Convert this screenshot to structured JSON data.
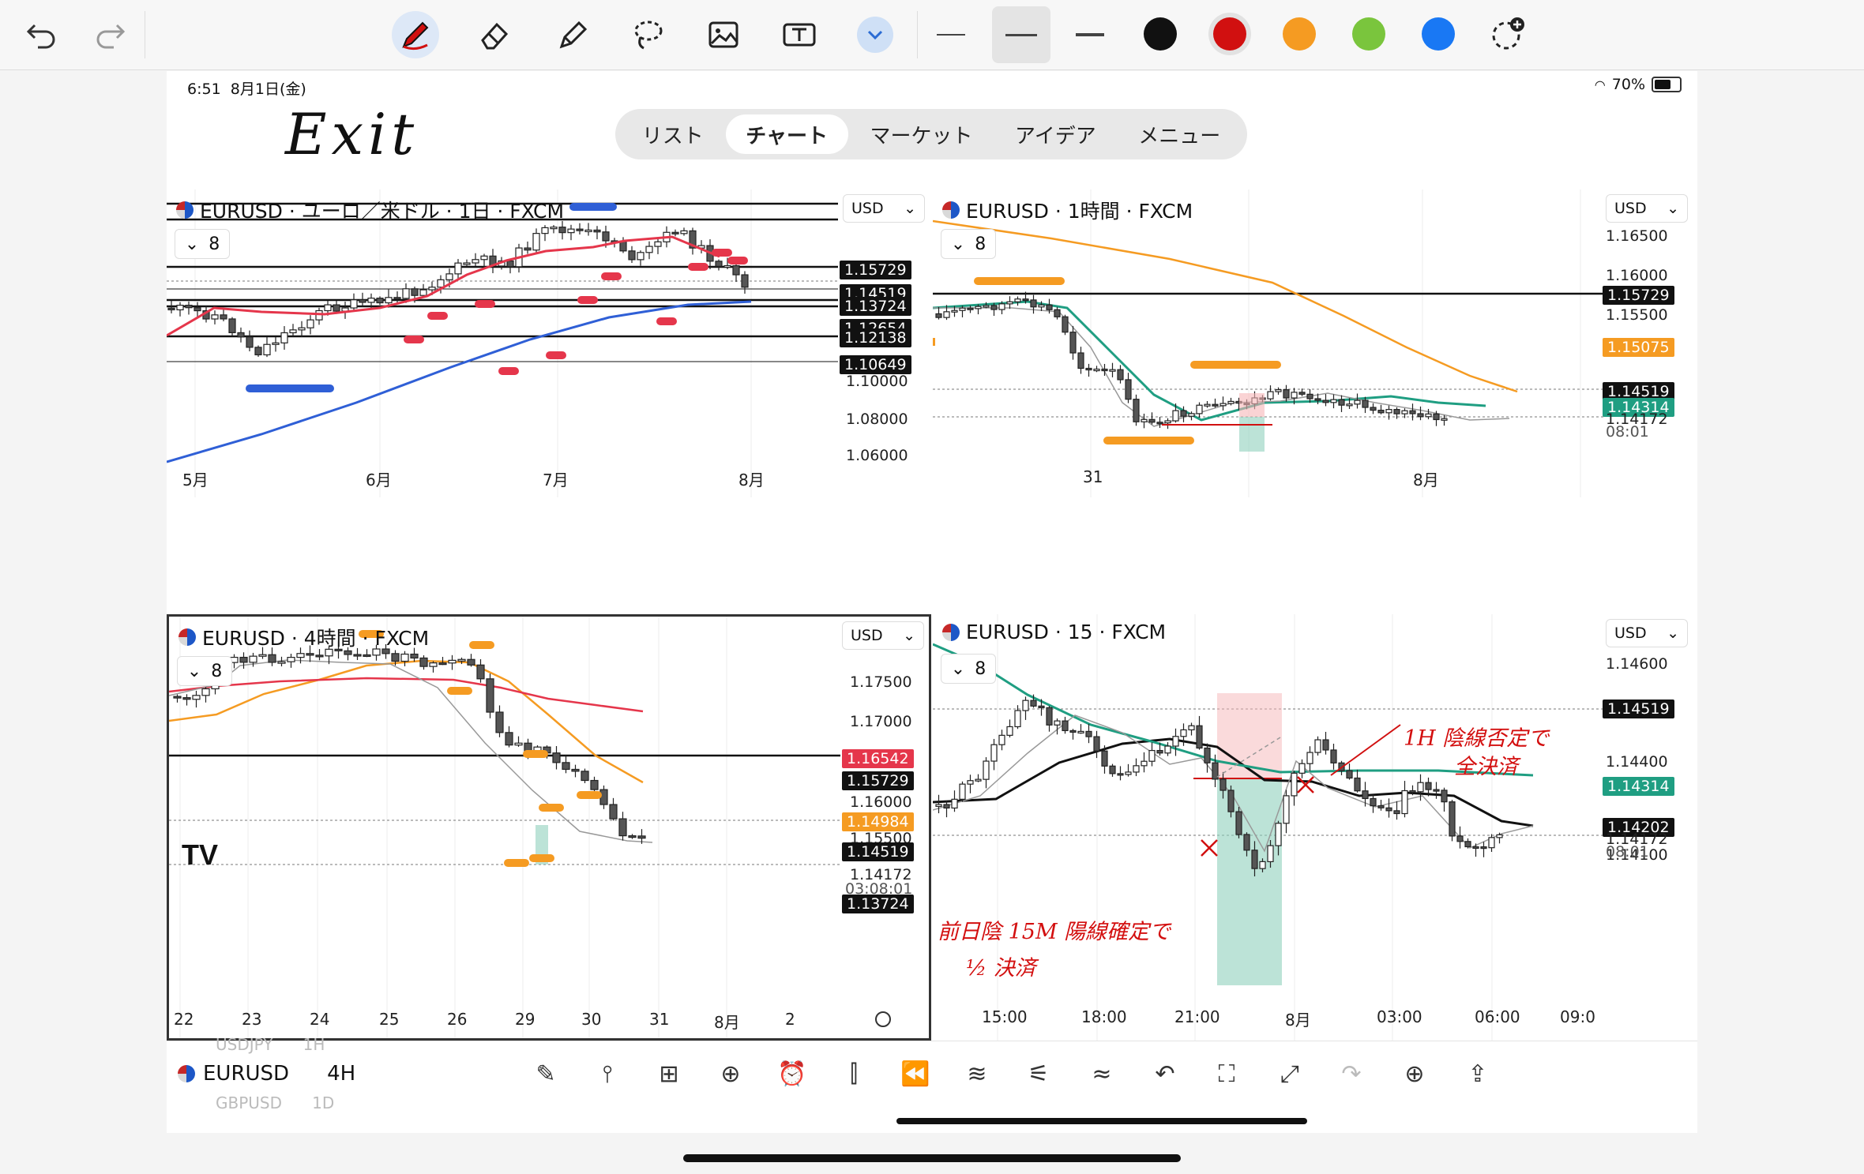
{
  "toolbar": {
    "tools": [
      "undo-icon",
      "redo-icon",
      "pen-icon",
      "eraser-icon",
      "highlighter-icon",
      "lasso-icon",
      "image-icon",
      "text-box-icon",
      "chevron-down-icon",
      "thin-line-icon",
      "medium-line-icon",
      "thick-line-icon"
    ],
    "colors": [
      "#111111",
      "#d11010",
      "#f59b22",
      "#7ac53d",
      "#1978f4"
    ]
  },
  "status": {
    "time": "6:51",
    "date": "8月1日(金)",
    "battery": "70%",
    "battery_level": 0.7
  },
  "note_exit": "Exit",
  "tabs": [
    "リスト",
    "チャート",
    "マーケット",
    "アイデア",
    "メニュー"
  ],
  "panels": {
    "daily": {
      "title": "EURUSD · ユーロ／米ドル · 1日 · FXCM",
      "interval": "8",
      "currency": "USD",
      "yticks": [
        "1.10000",
        "1.08000",
        "1.06000"
      ],
      "price_tags": [
        {
          "text": "1.15729",
          "color": "#111111"
        },
        {
          "text": "1.14519",
          "color": "#111111"
        },
        {
          "text": "1.13724",
          "color": "#111111"
        },
        {
          "text": "1.12654",
          "color": "#111111"
        },
        {
          "text": "1.12138",
          "color": "#111111"
        },
        {
          "text": "1.10649",
          "color": "#111111"
        }
      ],
      "xticks": [
        "5月",
        "6月",
        "7月",
        "8月"
      ]
    },
    "h1": {
      "title": "EURUSD · 1時間 · FXCM",
      "interval": "8",
      "currency": "USD",
      "yticks": [
        "1.16500",
        "1.16000",
        "1.15500"
      ],
      "price_tags": [
        {
          "text": "1.15729",
          "color": "#111111"
        },
        {
          "text": "1.15075",
          "color": "#f59b22"
        },
        {
          "text": "1.14519",
          "color": "#111111"
        },
        {
          "text": "1.14314",
          "color": "#1f9e82"
        }
      ],
      "last_price": "1.14172",
      "countdown": "08:01",
      "xticks": [
        "31",
        "8月"
      ]
    },
    "h4": {
      "title": "EURUSD · 4時間 · FXCM",
      "interval": "8",
      "currency": "USD",
      "yticks": [
        "1.17500",
        "1.17000",
        "1.16000",
        "1.15500"
      ],
      "price_tags": [
        {
          "text": "1.16542",
          "color": "#e5364b"
        },
        {
          "text": "1.15729",
          "color": "#111111"
        },
        {
          "text": "1.14984",
          "color": "#f59b22"
        },
        {
          "text": "1.14519",
          "color": "#111111"
        },
        {
          "text": "1.13724",
          "color": "#111111"
        }
      ],
      "last_price": "1.14172",
      "countdown": "03:08:01",
      "xticks": [
        "22",
        "23",
        "24",
        "25",
        "26",
        "29",
        "30",
        "31",
        "8月",
        "2"
      ],
      "logo": "TV"
    },
    "m15": {
      "title": "EURUSD · 15 · FXCM",
      "interval": "8",
      "currency": "USD",
      "yticks": [
        "1.14600",
        "1.14400",
        "1.14100"
      ],
      "price_tags": [
        {
          "text": "1.14519",
          "color": "#111111"
        },
        {
          "text": "1.14314",
          "color": "#1f9e82"
        },
        {
          "text": "1.14202",
          "color": "#111111"
        }
      ],
      "last_price": "1.14172",
      "countdown": "08:01",
      "xticks": [
        "15:00",
        "18:00",
        "21:00",
        "8月",
        "03:00",
        "06:00",
        "09:0"
      ],
      "note_top": [
        "1H 陰線否定で",
        "全決済"
      ],
      "note_bottom": [
        "前日陰 15M 陽線確定で",
        "½ 決済"
      ]
    }
  },
  "bottom": {
    "symbol": "EURUSD",
    "interval": "4H",
    "prev_symbol": "USDJPY",
    "prev_interval": "1H",
    "next_symbol": "GBPUSD",
    "next_interval": "1D"
  }
}
